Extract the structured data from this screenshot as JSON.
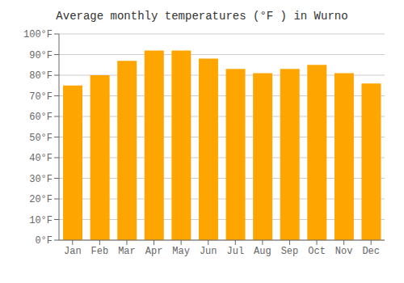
{
  "chart_data": {
    "type": "bar",
    "title": "Average monthly temperatures (°F ) in Wurno",
    "categories": [
      "Jan",
      "Feb",
      "Mar",
      "Apr",
      "May",
      "Jun",
      "Jul",
      "Aug",
      "Sep",
      "Oct",
      "Nov",
      "Dec"
    ],
    "values": [
      75,
      80,
      87,
      92,
      92,
      88,
      83,
      81,
      83,
      85,
      81,
      76
    ],
    "color": "#FFA500",
    "ylim": [
      0,
      100
    ],
    "yticks": [
      {
        "value": 0,
        "label": "0°F"
      },
      {
        "value": 10,
        "label": "10°F"
      },
      {
        "value": 20,
        "label": "20°F"
      },
      {
        "value": 30,
        "label": "30°F"
      },
      {
        "value": 40,
        "label": "40°F"
      },
      {
        "value": 50,
        "label": "50°F"
      },
      {
        "value": 60,
        "label": "60°F"
      },
      {
        "value": 70,
        "label": "70°F"
      },
      {
        "value": 80,
        "label": "80°F"
      },
      {
        "value": 90,
        "label": "90°F"
      },
      {
        "value": 100,
        "label": "100°F"
      }
    ],
    "grid": true
  }
}
